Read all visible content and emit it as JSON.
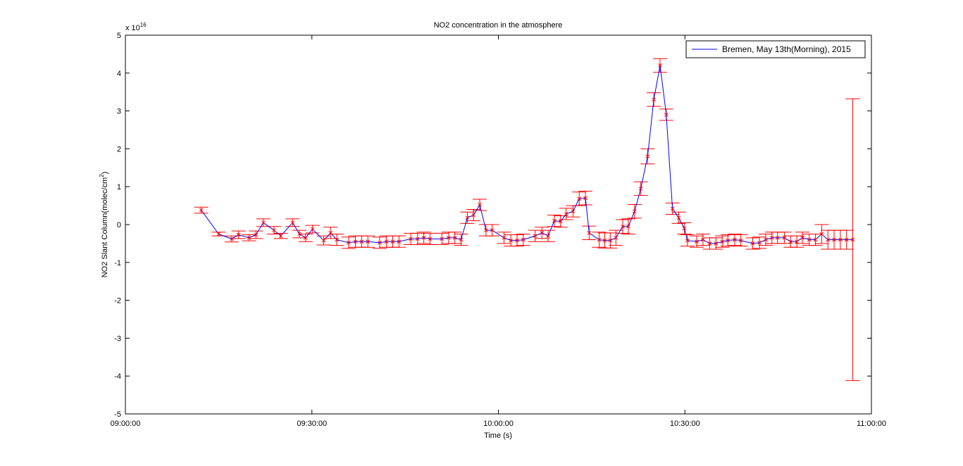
{
  "chart_data": {
    "type": "line",
    "title": "NO2 concentration in the atmosphere",
    "xlabel": "Time (s)",
    "ylabel_main": "NO2 Slant Column(molec/cm",
    "ylabel_sup": "2",
    "ylabel_end": ")",
    "y_exponent_prefix": "x 10",
    "y_exponent_power": "16",
    "xlim": [
      0,
      120
    ],
    "ylim": [
      -5,
      5
    ],
    "x_ticks": [
      {
        "value": 0,
        "label": "09:00:00"
      },
      {
        "value": 30,
        "label": "09:30:00"
      },
      {
        "value": 60,
        "label": "10:00:00"
      },
      {
        "value": 90,
        "label": "10:30:00"
      },
      {
        "value": 120,
        "label": "11:00:00"
      }
    ],
    "y_ticks": [
      {
        "value": 5,
        "label": "5"
      },
      {
        "value": 4,
        "label": "4"
      },
      {
        "value": 3,
        "label": "3"
      },
      {
        "value": 2,
        "label": "2"
      },
      {
        "value": 1,
        "label": "1"
      },
      {
        "value": 0,
        "label": "0"
      },
      {
        "value": -1,
        "label": "-1"
      },
      {
        "value": -2,
        "label": "-2"
      },
      {
        "value": -3,
        "label": "-3"
      },
      {
        "value": -4,
        "label": "-4"
      },
      {
        "value": -5,
        "label": "-5"
      }
    ],
    "legend": {
      "position": "top-right",
      "label": "Bremen, May 13th(Morning), 2015"
    },
    "colors": {
      "line": "#0000ff",
      "error": "#ff0000",
      "marker": "#ff0000"
    },
    "series": [
      {
        "name": "Bremen, May 13th(Morning), 2015",
        "points": [
          {
            "x": 12.2,
            "y": 0.38,
            "err": 0.08
          },
          {
            "x": 15.0,
            "y": -0.25,
            "err": 0.05
          },
          {
            "x": 17.1,
            "y": -0.38,
            "err": 0.08
          },
          {
            "x": 18.2,
            "y": -0.27,
            "err": 0.1
          },
          {
            "x": 19.9,
            "y": -0.35,
            "err": 0.08
          },
          {
            "x": 21.0,
            "y": -0.27,
            "err": 0.1
          },
          {
            "x": 22.2,
            "y": 0.05,
            "err": 0.1
          },
          {
            "x": 23.9,
            "y": -0.15,
            "err": 0.1
          },
          {
            "x": 25.0,
            "y": -0.3,
            "err": 0.07
          },
          {
            "x": 26.9,
            "y": 0.05,
            "err": 0.1
          },
          {
            "x": 28.0,
            "y": -0.25,
            "err": 0.1
          },
          {
            "x": 29.0,
            "y": -0.35,
            "err": 0.1
          },
          {
            "x": 30.1,
            "y": -0.12,
            "err": 0.1
          },
          {
            "x": 31.9,
            "y": -0.42,
            "err": 0.12
          },
          {
            "x": 33.0,
            "y": -0.22,
            "err": 0.15
          },
          {
            "x": 34.0,
            "y": -0.4,
            "err": 0.15
          },
          {
            "x": 35.9,
            "y": -0.48,
            "err": 0.15
          },
          {
            "x": 37.0,
            "y": -0.45,
            "err": 0.15
          },
          {
            "x": 38.0,
            "y": -0.45,
            "err": 0.15
          },
          {
            "x": 39.0,
            "y": -0.45,
            "err": 0.15
          },
          {
            "x": 40.9,
            "y": -0.48,
            "err": 0.15
          },
          {
            "x": 42.0,
            "y": -0.45,
            "err": 0.15
          },
          {
            "x": 43.0,
            "y": -0.45,
            "err": 0.15
          },
          {
            "x": 44.0,
            "y": -0.45,
            "err": 0.15
          },
          {
            "x": 45.9,
            "y": -0.38,
            "err": 0.15
          },
          {
            "x": 47.0,
            "y": -0.38,
            "err": 0.15
          },
          {
            "x": 48.0,
            "y": -0.35,
            "err": 0.15
          },
          {
            "x": 49.0,
            "y": -0.38,
            "err": 0.15
          },
          {
            "x": 50.9,
            "y": -0.38,
            "err": 0.15
          },
          {
            "x": 52.0,
            "y": -0.35,
            "err": 0.15
          },
          {
            "x": 53.0,
            "y": -0.35,
            "err": 0.15
          },
          {
            "x": 54.0,
            "y": -0.4,
            "err": 0.15
          },
          {
            "x": 55.0,
            "y": 0.18,
            "err": 0.15
          },
          {
            "x": 56.0,
            "y": 0.25,
            "err": 0.15
          },
          {
            "x": 57.0,
            "y": 0.52,
            "err": 0.15
          },
          {
            "x": 58.0,
            "y": -0.15,
            "err": 0.15
          },
          {
            "x": 59.0,
            "y": -0.15,
            "err": 0.15
          },
          {
            "x": 60.9,
            "y": -0.35,
            "err": 0.15
          },
          {
            "x": 62.0,
            "y": -0.42,
            "err": 0.15
          },
          {
            "x": 63.0,
            "y": -0.42,
            "err": 0.15
          },
          {
            "x": 64.0,
            "y": -0.4,
            "err": 0.15
          },
          {
            "x": 65.9,
            "y": -0.3,
            "err": 0.15
          },
          {
            "x": 67.0,
            "y": -0.22,
            "err": 0.15
          },
          {
            "x": 68.0,
            "y": -0.3,
            "err": 0.15
          },
          {
            "x": 69.0,
            "y": 0.1,
            "err": 0.15
          },
          {
            "x": 70.0,
            "y": 0.08,
            "err": 0.15
          },
          {
            "x": 70.9,
            "y": 0.28,
            "err": 0.15
          },
          {
            "x": 72.0,
            "y": 0.35,
            "err": 0.15
          },
          {
            "x": 73.0,
            "y": 0.68,
            "err": 0.18
          },
          {
            "x": 74.0,
            "y": 0.7,
            "err": 0.18
          },
          {
            "x": 74.6,
            "y": -0.22,
            "err": 0.18
          },
          {
            "x": 76.2,
            "y": -0.4,
            "err": 0.2
          },
          {
            "x": 77.1,
            "y": -0.42,
            "err": 0.2
          },
          {
            "x": 78.0,
            "y": -0.42,
            "err": 0.2
          },
          {
            "x": 78.9,
            "y": -0.35,
            "err": 0.2
          },
          {
            "x": 80.0,
            "y": -0.05,
            "err": 0.18
          },
          {
            "x": 80.9,
            "y": -0.05,
            "err": 0.2
          },
          {
            "x": 81.9,
            "y": 0.35,
            "err": 0.18
          },
          {
            "x": 82.9,
            "y": 0.95,
            "err": 0.18
          },
          {
            "x": 84.0,
            "y": 1.8,
            "err": 0.2
          },
          {
            "x": 85.0,
            "y": 3.3,
            "err": 0.18
          },
          {
            "x": 86.0,
            "y": 4.2,
            "err": 0.18
          },
          {
            "x": 87.0,
            "y": 2.9,
            "err": 0.15
          },
          {
            "x": 88.0,
            "y": 0.42,
            "err": 0.15
          },
          {
            "x": 89.0,
            "y": 0.18,
            "err": 0.15
          },
          {
            "x": 89.9,
            "y": -0.1,
            "err": 0.15
          },
          {
            "x": 90.4,
            "y": -0.42,
            "err": 0.15
          },
          {
            "x": 91.9,
            "y": -0.45,
            "err": 0.15
          },
          {
            "x": 92.9,
            "y": -0.4,
            "err": 0.15
          },
          {
            "x": 94.0,
            "y": -0.5,
            "err": 0.15
          },
          {
            "x": 95.0,
            "y": -0.5,
            "err": 0.15
          },
          {
            "x": 96.0,
            "y": -0.45,
            "err": 0.15
          },
          {
            "x": 96.9,
            "y": -0.42,
            "err": 0.15
          },
          {
            "x": 98.0,
            "y": -0.4,
            "err": 0.15
          },
          {
            "x": 99.0,
            "y": -0.42,
            "err": 0.15
          },
          {
            "x": 100.9,
            "y": -0.5,
            "err": 0.15
          },
          {
            "x": 102.0,
            "y": -0.48,
            "err": 0.15
          },
          {
            "x": 103.0,
            "y": -0.4,
            "err": 0.15
          },
          {
            "x": 104.0,
            "y": -0.35,
            "err": 0.15
          },
          {
            "x": 104.9,
            "y": -0.35,
            "err": 0.15
          },
          {
            "x": 106.0,
            "y": -0.35,
            "err": 0.15
          },
          {
            "x": 107.0,
            "y": -0.45,
            "err": 0.15
          },
          {
            "x": 108.0,
            "y": -0.45,
            "err": 0.15
          },
          {
            "x": 108.9,
            "y": -0.35,
            "err": 0.15
          },
          {
            "x": 110.0,
            "y": -0.4,
            "err": 0.15
          },
          {
            "x": 111.0,
            "y": -0.4,
            "err": 0.15
          },
          {
            "x": 112.0,
            "y": -0.25,
            "err": 0.25
          },
          {
            "x": 113.0,
            "y": -0.4,
            "err": 0.25
          },
          {
            "x": 114.0,
            "y": -0.4,
            "err": 0.25
          },
          {
            "x": 115.0,
            "y": -0.4,
            "err": 0.25
          },
          {
            "x": 116.0,
            "y": -0.4,
            "err": 0.25
          },
          {
            "x": 117.0,
            "y": -0.4,
            "err": 3.72
          }
        ]
      }
    ]
  }
}
